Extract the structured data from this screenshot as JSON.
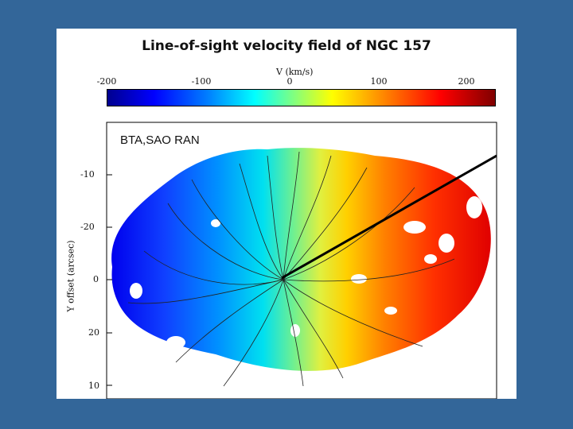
{
  "title": "Line-of-sight velocity field of NGC 157",
  "colorbar": {
    "label": "V (km/s)",
    "ticks": [
      "-200",
      "-100",
      "0",
      "100",
      "200"
    ],
    "range": [
      -250,
      250
    ],
    "colors": [
      "#00008f",
      "#0000ff",
      "#0080ff",
      "#00ffff",
      "#80ff80",
      "#ffff00",
      "#ff8000",
      "#ff0000",
      "#800000"
    ]
  },
  "map": {
    "y_axis_label": "Y offset (arcsec)",
    "y_ticks": [
      "-10",
      "-20",
      "0",
      "20",
      "10"
    ],
    "watermark": "BTA,SAO RAN"
  },
  "colors": {
    "background": "#336699",
    "panel": "#ffffff"
  }
}
